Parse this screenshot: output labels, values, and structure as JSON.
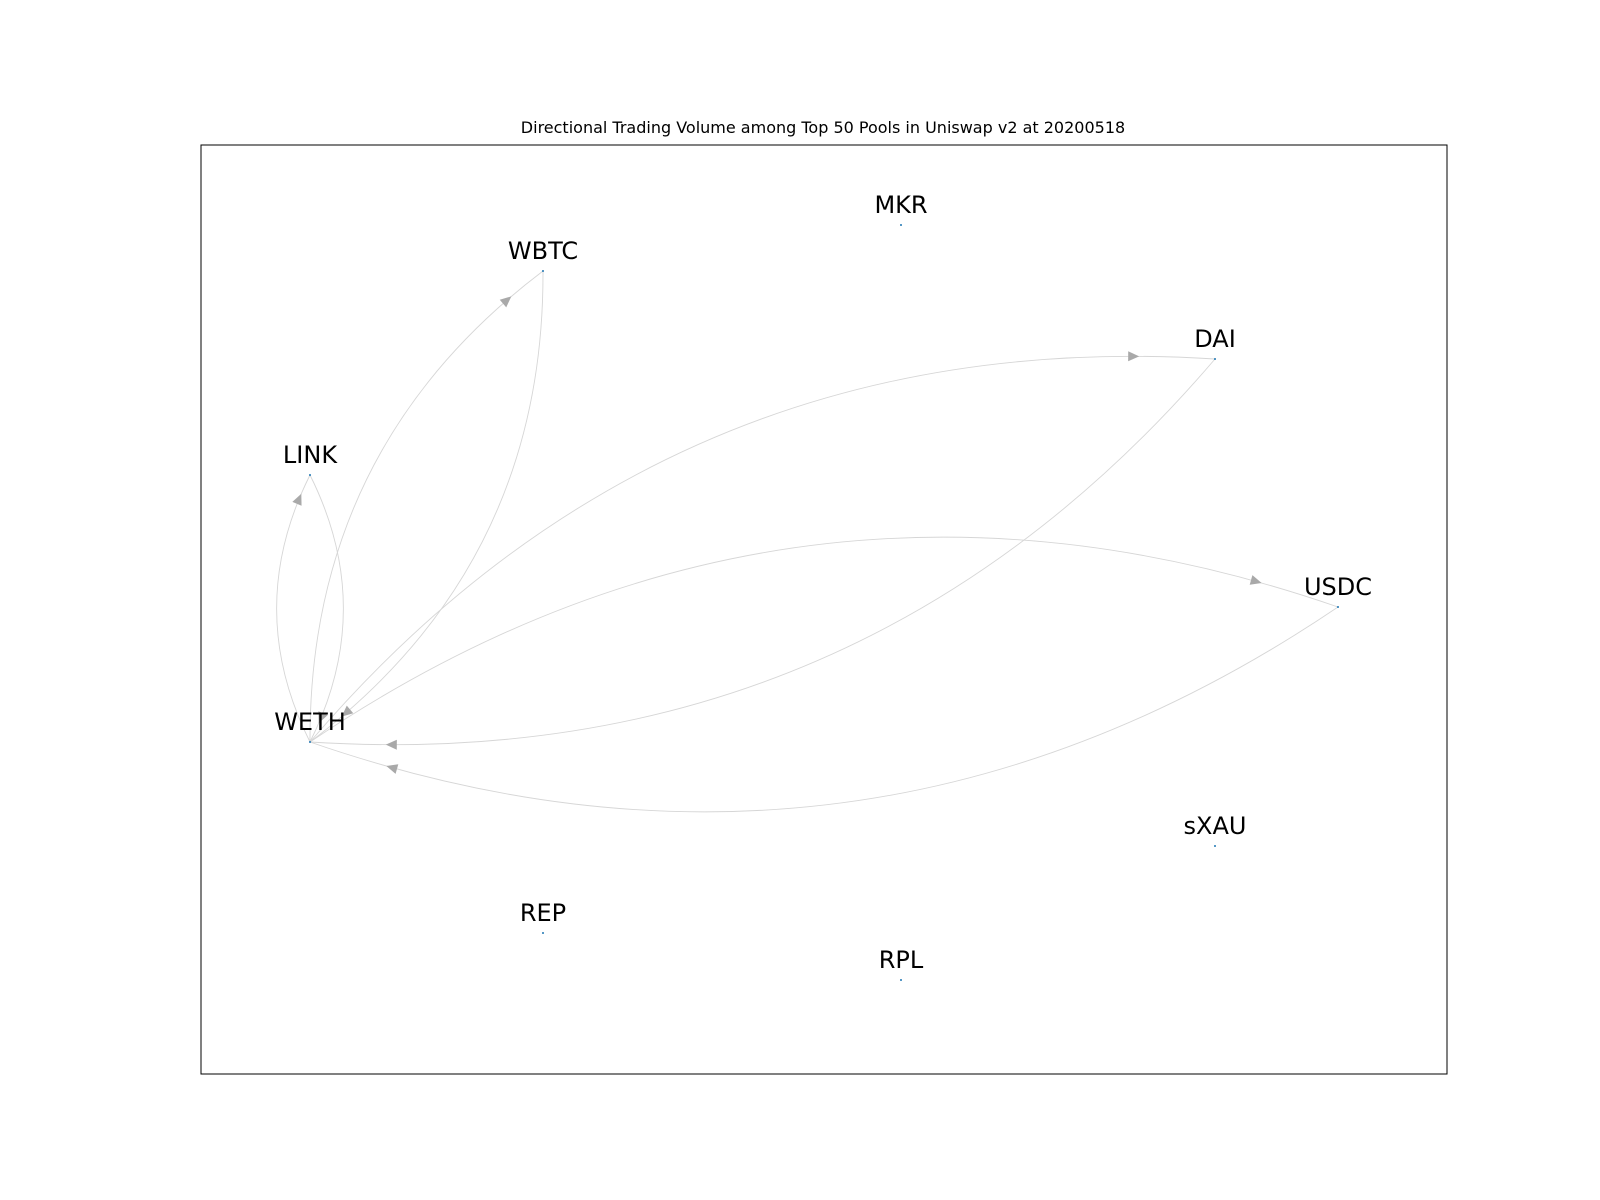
{
  "figure": {
    "title": "Directional Trading Volume among Top 50 Pools in Uniswap v2 at 20200518"
  },
  "nodes": [
    {
      "id": "WETH",
      "label": "WETH"
    },
    {
      "id": "WBTC",
      "label": "WBTC"
    },
    {
      "id": "MKR",
      "label": "MKR"
    },
    {
      "id": "DAI",
      "label": "DAI"
    },
    {
      "id": "LINK",
      "label": "LINK"
    },
    {
      "id": "USDC",
      "label": "USDC"
    },
    {
      "id": "sXAU",
      "label": "sXAU"
    },
    {
      "id": "REP",
      "label": "REP"
    },
    {
      "id": "RPL",
      "label": "RPL"
    }
  ],
  "edges": [
    {
      "source": "WETH",
      "target": "WBTC"
    },
    {
      "source": "WBTC",
      "target": "WETH"
    },
    {
      "source": "WETH",
      "target": "LINK"
    },
    {
      "source": "LINK",
      "target": "WETH"
    },
    {
      "source": "WETH",
      "target": "DAI"
    },
    {
      "source": "DAI",
      "target": "WETH"
    },
    {
      "source": "WETH",
      "target": "USDC"
    },
    {
      "source": "USDC",
      "target": "WETH"
    }
  ],
  "colors": {
    "edge": "#d6d6d6",
    "arrow": "#a9a9a9",
    "frame": "#000000",
    "background": "#ffffff"
  }
}
